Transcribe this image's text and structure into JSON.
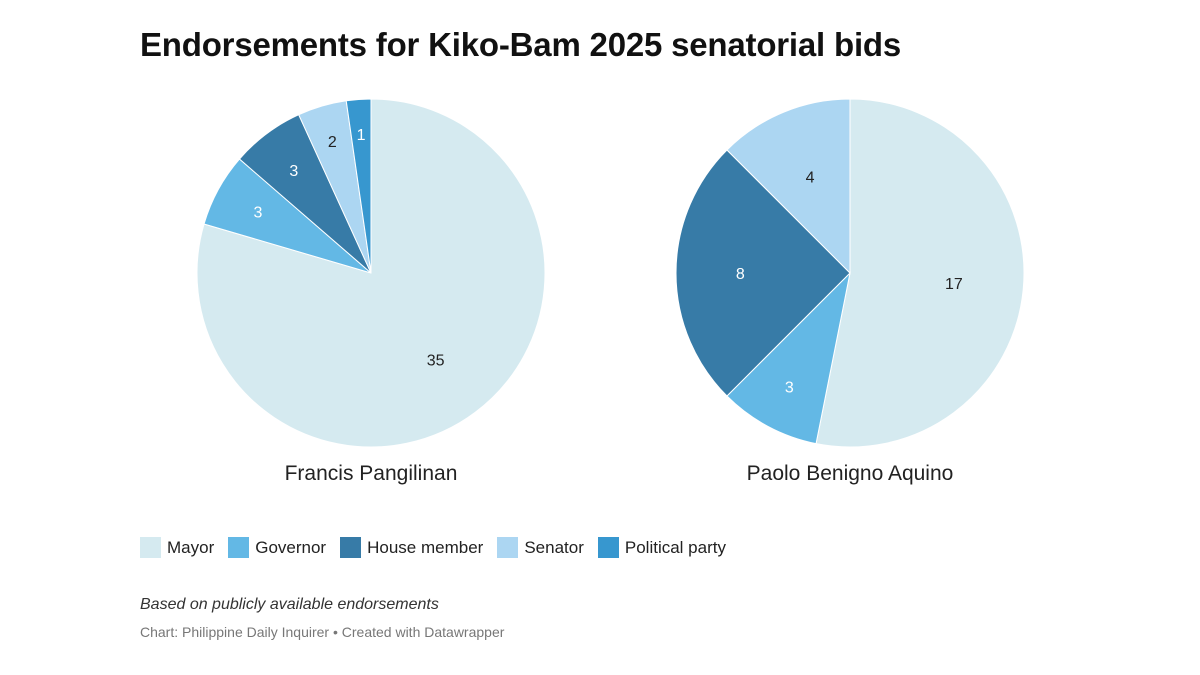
{
  "title": "Endorsements for Kiko-Bam 2025 senatorial bids",
  "legend": [
    {
      "label": "Mayor",
      "color": "#d5eaf0"
    },
    {
      "label": "Governor",
      "color": "#63b8e5"
    },
    {
      "label": "House member",
      "color": "#377ba7"
    },
    {
      "label": "Senator",
      "color": "#acd6f2"
    },
    {
      "label": "Political party",
      "color": "#3797cf"
    }
  ],
  "chart_data": [
    {
      "type": "pie",
      "title": "Francis Pangilinan",
      "labels": [
        "Mayor",
        "Governor",
        "House member",
        "Senator",
        "Political party"
      ],
      "values": [
        35,
        3,
        3,
        2,
        1
      ]
    },
    {
      "type": "pie",
      "title": "Paolo Benigno Aquino",
      "labels": [
        "Mayor",
        "Governor",
        "House member",
        "Senator"
      ],
      "values": [
        17,
        3,
        8,
        4
      ]
    }
  ],
  "note": "Based on publicly available endorsements",
  "source": "Chart: Philippine Daily Inquirer • Created with Datawrapper"
}
